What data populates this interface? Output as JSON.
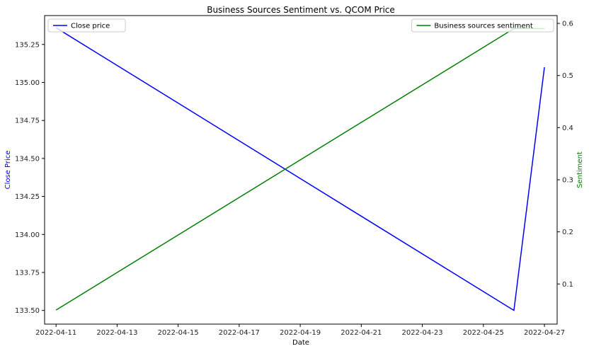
{
  "chart_data": {
    "type": "line",
    "title": "Business Sources Sentiment vs. QCOM Price",
    "xlabel": "Date",
    "ylabel_left": "Close Price",
    "ylabel_right": "Sentiment",
    "x_ticks": [
      "2022-04-11",
      "2022-04-13",
      "2022-04-15",
      "2022-04-17",
      "2022-04-19",
      "2022-04-21",
      "2022-04-23",
      "2022-04-25",
      "2022-04-27"
    ],
    "xlim": [
      "2022-04-10T15:00",
      "2022-04-27T10:00"
    ],
    "y_left_ticks": [
      "133.50",
      "133.75",
      "134.00",
      "134.25",
      "134.50",
      "134.75",
      "135.00",
      "135.25"
    ],
    "ylim_left": [
      133.41,
      135.44
    ],
    "y_right_ticks": [
      "0.1",
      "0.2",
      "0.3",
      "0.4",
      "0.5",
      "0.6"
    ],
    "ylim_right": [
      0.023,
      0.615
    ],
    "grid": false,
    "series": [
      {
        "name": "Close price",
        "axis": "left",
        "color": "#0000ff",
        "legend_position": "upper-left",
        "points": [
          {
            "x": "2022-04-11",
            "y": 135.36
          },
          {
            "x": "2022-04-26",
            "y": 133.5
          },
          {
            "x": "2022-04-27",
            "y": 135.1
          }
        ]
      },
      {
        "name": "Business sources sentiment",
        "axis": "right",
        "color": "#008000",
        "legend_position": "upper-right",
        "points": [
          {
            "x": "2022-04-11",
            "y": 0.05
          },
          {
            "x": "2022-04-26",
            "y": 0.59
          },
          {
            "x": "2022-04-27",
            "y": 0.59
          }
        ]
      }
    ]
  }
}
